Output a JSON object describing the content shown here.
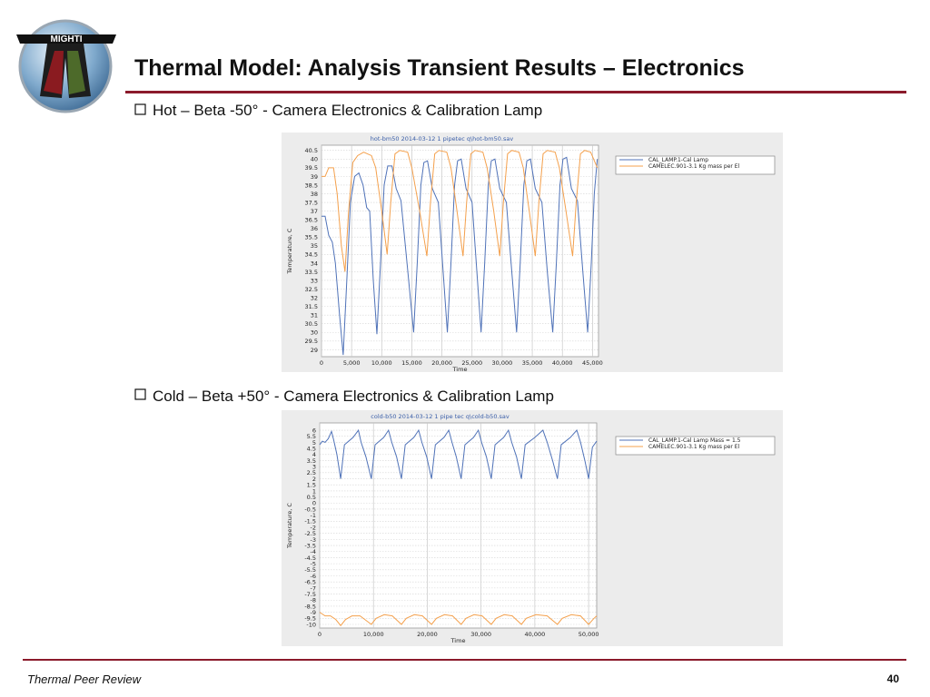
{
  "header": {
    "logo": "MIGHTI",
    "title": "Thermal Model:  Analysis Transient Results – Electronics"
  },
  "bullets": [
    "Hot – Beta -50° - Camera Electronics & Calibration Lamp",
    "Cold – Beta +50° - Camera Electronics & Calibration Lamp"
  ],
  "chart_data": [
    {
      "type": "line",
      "title": "hot-bm50 2014-03-12 1 pipetec q\\hot-bm50.sav",
      "x_label": "Time",
      "y_label": "Temperature, C",
      "xlim": [
        0,
        46000
      ],
      "ylim": [
        28.6,
        40.8
      ],
      "grid": true,
      "xticks": [
        0,
        {
          "value": 5000,
          "label": "5,000"
        },
        {
          "value": 10000,
          "label": "10,000"
        },
        {
          "value": 15000,
          "label": "15,000"
        },
        {
          "value": 20000,
          "label": "20,000"
        },
        {
          "value": 25000,
          "label": "25,000"
        },
        {
          "value": 30000,
          "label": "30,000"
        },
        {
          "value": 35000,
          "label": "35,000"
        },
        {
          "value": 40000,
          "label": "40,000"
        },
        {
          "value": 45000,
          "label": "45,000"
        }
      ],
      "yticks": [
        29,
        29.5,
        30,
        30.5,
        31,
        31.5,
        32,
        32.5,
        33,
        33.5,
        34,
        34.5,
        35,
        35.5,
        36,
        36.5,
        37,
        37.5,
        38,
        38.5,
        39,
        39.5,
        40,
        40.5
      ],
      "series": [
        {
          "name": "CAL_LAMP.1-Cal Lamp",
          "color": "#4f72b8",
          "x": [
            0,
            600,
            1200,
            1800,
            2300,
            3000,
            3600,
            4200,
            4800,
            5500,
            6200,
            6900,
            7500,
            8000,
            8600,
            9200,
            9800,
            10400,
            11000,
            11700,
            12400,
            13200,
            14200,
            15300,
            15900,
            16500,
            17000,
            17600,
            18400,
            19400,
            20200,
            20900,
            21500,
            22100,
            22600,
            23200,
            24000,
            25000,
            25800,
            26500,
            27100,
            27700,
            28200,
            28800,
            29600,
            30700,
            31600,
            32400,
            33000,
            33600,
            34100,
            34700,
            35500,
            36600,
            37500,
            38400,
            39000,
            39600,
            40100,
            40700,
            41500,
            42500,
            43400,
            44200,
            44800,
            45300,
            45800
          ],
          "values": [
            36.7,
            36.7,
            35.6,
            35.2,
            34.0,
            31,
            28.7,
            33,
            37.5,
            39.0,
            39.2,
            38.5,
            37.2,
            37.0,
            33,
            29.9,
            34,
            38.5,
            39.6,
            39.6,
            38.3,
            37.6,
            34,
            30.0,
            34,
            38.5,
            39.8,
            39.9,
            38.3,
            37.5,
            33.5,
            30.0,
            34,
            38.5,
            39.9,
            40.0,
            38.3,
            37.5,
            33.5,
            30.0,
            34,
            38.5,
            39.9,
            40.0,
            38.3,
            37.5,
            33.5,
            30.0,
            34,
            38.5,
            39.9,
            40.0,
            38.3,
            37.5,
            33.5,
            30.0,
            34,
            38.5,
            40.0,
            40.1,
            38.3,
            37.6,
            33.5,
            30.0,
            34,
            38.0,
            40.0
          ]
        },
        {
          "name": "CAMELEC.901-3.1 Kg mass per El",
          "color": "#f4a04c",
          "x": [
            0,
            600,
            1200,
            2000,
            2600,
            3300,
            3900,
            4500,
            5200,
            6000,
            7000,
            8300,
            9000,
            10000,
            10900,
            11500,
            12200,
            13000,
            14300,
            15000,
            16300,
            17500,
            18100,
            18800,
            19500,
            20800,
            21500,
            22500,
            23500,
            24100,
            24800,
            25500,
            26800,
            27500,
            28600,
            29600,
            30200,
            30900,
            31600,
            32800,
            33500,
            34500,
            35500,
            36100,
            36800,
            37500,
            38800,
            39500,
            40600,
            41700,
            42300,
            43000,
            43700,
            44700,
            45800
          ],
          "values": [
            39.0,
            39.0,
            39.5,
            39.5,
            38,
            35,
            33.5,
            37,
            39.8,
            40.2,
            40.4,
            40.2,
            39.5,
            37,
            34.5,
            37.5,
            40.3,
            40.5,
            40.4,
            39.5,
            37,
            34.4,
            37.5,
            40.3,
            40.5,
            40.4,
            39.5,
            37,
            34.4,
            37.5,
            40.3,
            40.5,
            40.4,
            39.5,
            37,
            34.4,
            37.5,
            40.3,
            40.5,
            40.4,
            39.5,
            37,
            34.4,
            37.5,
            40.3,
            40.5,
            40.4,
            39.5,
            37,
            34.4,
            37.5,
            40.3,
            40.5,
            40.4,
            39.5
          ]
        }
      ]
    },
    {
      "type": "line",
      "title": "cold-b50 2014-03-12 1 pipe tec q\\cold-b50.sav",
      "x_label": "Time",
      "y_label": "Temperature, C",
      "xlim": [
        0,
        51500
      ],
      "ylim": [
        -10.3,
        6.6
      ],
      "grid": true,
      "xticks": [
        0,
        {
          "value": 10000,
          "label": "10,000"
        },
        {
          "value": 20000,
          "label": "20,000"
        },
        {
          "value": 30000,
          "label": "30,000"
        },
        {
          "value": 40000,
          "label": "40,000"
        },
        {
          "value": 50000,
          "label": "50,000"
        }
      ],
      "yticks": [
        -10,
        -9.5,
        -9,
        -8.5,
        -8,
        -7.5,
        -7,
        -6.5,
        -6,
        -5.5,
        -5,
        -4.5,
        -4,
        -3.5,
        -3,
        -2.5,
        -2,
        -1.5,
        -1,
        -0.5,
        0,
        0.5,
        1,
        1.5,
        2,
        2.5,
        3,
        3.5,
        4,
        4.5,
        5,
        5.5,
        6
      ],
      "series": [
        {
          "name": "CAL_LAMP.1-Cal Lamp Mass = 1.5",
          "color": "#4f72b8",
          "x": [
            0,
            500,
            1000,
            1600,
            2200,
            2600,
            3200,
            3900,
            4600,
            6200,
            7200,
            7700,
            8600,
            9600,
            10300,
            11900,
            12800,
            13400,
            14300,
            15200,
            15900,
            17500,
            18400,
            19000,
            19900,
            20800,
            21500,
            23100,
            24000,
            24600,
            25400,
            26300,
            27000,
            28600,
            29500,
            30100,
            31000,
            31900,
            32600,
            34200,
            35100,
            35700,
            36600,
            37500,
            38200,
            40000,
            41500,
            42300,
            43300,
            44200,
            44900,
            46600,
            47800,
            48500,
            49300,
            50000,
            50700,
            51500
          ],
          "values": [
            4.8,
            5.1,
            5.0,
            5.3,
            5.9,
            5.2,
            4.0,
            2.0,
            4.8,
            5.4,
            6.0,
            5.0,
            3.8,
            2.0,
            4.8,
            5.4,
            6.0,
            5.0,
            3.8,
            2.0,
            4.8,
            5.4,
            6.0,
            5.0,
            3.8,
            2.0,
            4.8,
            5.4,
            6.0,
            5.0,
            3.8,
            2.0,
            4.8,
            5.4,
            6.0,
            5.0,
            3.8,
            2.0,
            4.8,
            5.4,
            6.0,
            5.0,
            3.8,
            2.0,
            4.8,
            5.4,
            6.0,
            5.0,
            3.5,
            2.0,
            4.8,
            5.4,
            6.0,
            5.0,
            3.5,
            2.0,
            4.6,
            5.1
          ]
        },
        {
          "name": "CAMELEC.901-3.1 Kg mass per El",
          "color": "#f4a04c",
          "x": [
            0,
            1000,
            2000,
            3000,
            3900,
            4800,
            6000,
            7500,
            9600,
            10500,
            12000,
            13500,
            15200,
            16100,
            17600,
            19100,
            20800,
            21700,
            23200,
            24700,
            26300,
            27200,
            28700,
            30200,
            31900,
            32800,
            34300,
            35800,
            37500,
            38400,
            40200,
            42300,
            44200,
            45100,
            46800,
            48500,
            50000,
            51000,
            51500
          ],
          "values": [
            -9.0,
            -9.3,
            -9.3,
            -9.6,
            -10.1,
            -9.6,
            -9.3,
            -9.3,
            -10.0,
            -9.5,
            -9.2,
            -9.3,
            -10.0,
            -9.5,
            -9.2,
            -9.3,
            -10.0,
            -9.5,
            -9.2,
            -9.3,
            -10.0,
            -9.5,
            -9.2,
            -9.3,
            -10.0,
            -9.5,
            -9.2,
            -9.3,
            -10.0,
            -9.5,
            -9.2,
            -9.3,
            -10.0,
            -9.5,
            -9.2,
            -9.3,
            -10.0,
            -9.5,
            -9.3
          ]
        }
      ]
    }
  ],
  "footer": {
    "text": "Thermal Peer Review",
    "page": 40
  }
}
